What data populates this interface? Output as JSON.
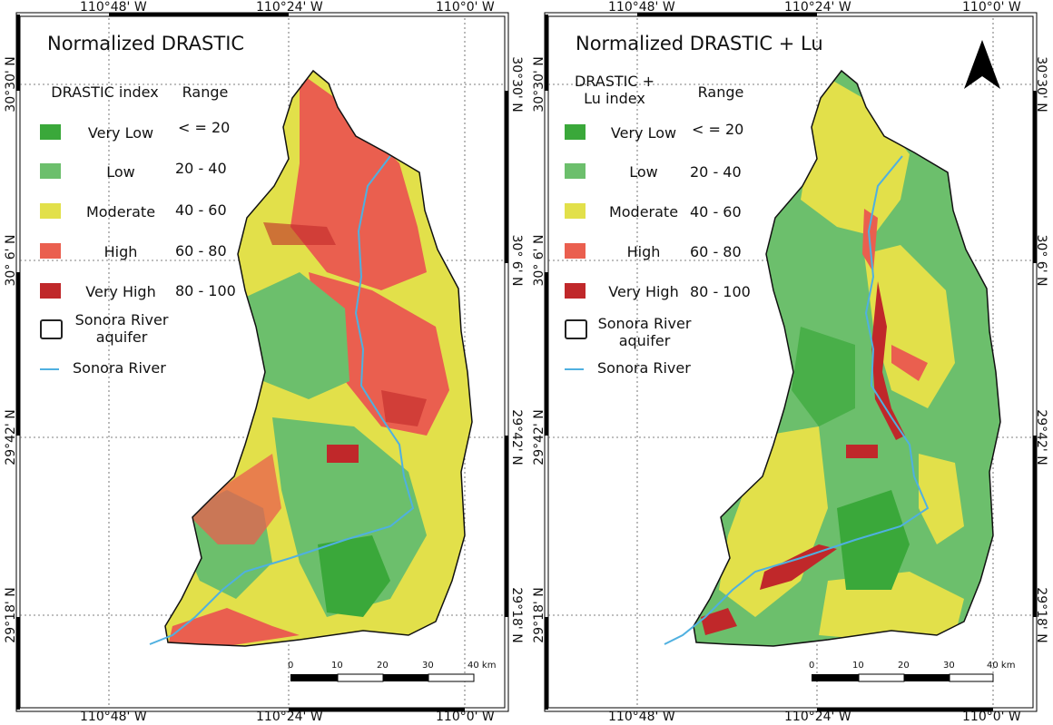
{
  "colors": {
    "very_low": "#3aa83a",
    "low": "#6cbf6c",
    "moderate": "#e2e04a",
    "high": "#ea5f4f",
    "very_high": "#c0282a",
    "river": "#4fb0e0"
  },
  "coords": {
    "lon_top": [
      "110°48' W",
      "110°24' W",
      "110°0' W"
    ],
    "lon_bottom": [
      "110°48' W",
      "110°24' W",
      "110°0' W"
    ],
    "lat_left": [
      "30°30' N",
      "30° 6' N",
      "29°42' N",
      "29°18' N"
    ],
    "lat_right": [
      "30°30' N",
      "30° 6' N",
      "29°42' N",
      "29°18' N"
    ]
  },
  "left_map": {
    "title": "Normalized DRASTIC",
    "index_header": "DRASTIC index",
    "range_header": "Range",
    "classes": [
      {
        "label": "Very Low",
        "range": "< = 20"
      },
      {
        "label": "Low",
        "range": "20 - 40"
      },
      {
        "label": "Moderate",
        "range": "40 - 60"
      },
      {
        "label": "High",
        "range": "60 - 80"
      },
      {
        "label": "Very High",
        "range": "80 - 100"
      }
    ],
    "aquifer_label": "Sonora River aquifer",
    "river_label": "Sonora River",
    "scale": [
      "0",
      "10",
      "20",
      "30",
      "40 km"
    ]
  },
  "right_map": {
    "title": "Normalized DRASTIC + Lu",
    "index_header": "DRASTIC + Lu index",
    "range_header": "Range",
    "classes": [
      {
        "label": "Very Low",
        "range": "< = 20"
      },
      {
        "label": "Low",
        "range": "20 - 40"
      },
      {
        "label": "Moderate",
        "range": "40 - 60"
      },
      {
        "label": "High",
        "range": "60 - 80"
      },
      {
        "label": "Very High",
        "range": "80 - 100"
      }
    ],
    "aquifer_label": "Sonora River aquifer",
    "river_label": "Sonora River",
    "scale": [
      "0",
      "10",
      "20",
      "30",
      "40 km"
    ]
  }
}
